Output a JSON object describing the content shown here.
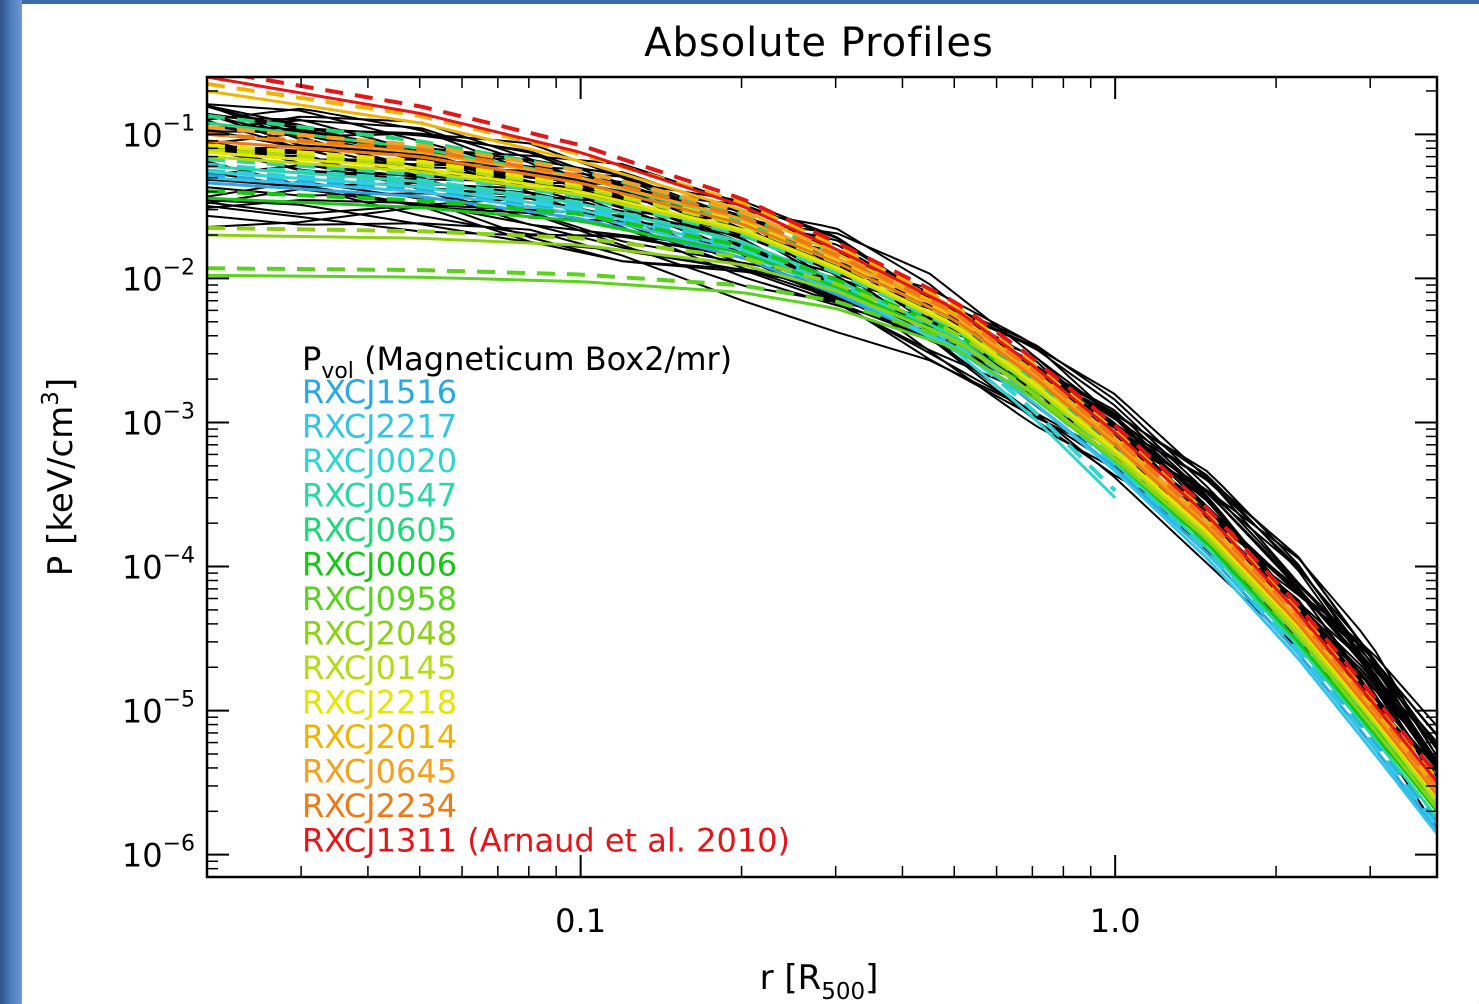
{
  "chart_data": {
    "type": "line",
    "title": "Absolute Profiles",
    "xlabel": "r [R",
    "xlabel_sub": "500",
    "xlabel_end": "]",
    "ylabel": "P [keV/cm",
    "ylabel_sup": "3",
    "ylabel_end": "]",
    "x_scale": "log",
    "y_scale": "log",
    "xlim": [
      0.02,
      4.0
    ],
    "ylim": [
      7e-07,
      0.25
    ],
    "x_ticks": [
      {
        "value": 0.1,
        "label": "0.1"
      },
      {
        "value": 1.0,
        "label": "1.0"
      }
    ],
    "y_ticks": [
      {
        "value": 0.1,
        "base": "10",
        "exp": "−1"
      },
      {
        "value": 0.01,
        "base": "10",
        "exp": "−2"
      },
      {
        "value": 0.001,
        "base": "10",
        "exp": "−3"
      },
      {
        "value": 0.0001,
        "base": "10",
        "exp": "−4"
      },
      {
        "value": 1e-05,
        "base": "10",
        "exp": "−5"
      },
      {
        "value": 1e-06,
        "base": "10",
        "exp": "−6"
      }
    ],
    "grid": false,
    "legend_placement": "left-center",
    "simulation": {
      "label": "P",
      "label_sub": "vol",
      "label_rest": " (Magneticum Box2/mr)",
      "color": "#000000",
      "n_profiles": 46,
      "x": [
        0.02,
        0.03,
        0.05,
        0.08,
        0.12,
        0.2,
        0.3,
        0.45,
        0.7,
        1.0,
        1.5,
        2.2,
        3.0,
        4.0
      ],
      "median": [
        0.065,
        0.058,
        0.048,
        0.037,
        0.027,
        0.016,
        0.0095,
        0.0048,
        0.0019,
        0.00075,
        0.00022,
        5.5e-05,
        1.5e-05,
        3.5e-06
      ]
    },
    "series": [
      {
        "name": "RXCJ1516",
        "color": "#29a7e6",
        "x": [
          0.02,
          0.05,
          0.1,
          0.2,
          0.3,
          0.5,
          0.7,
          1.0,
          1.5,
          2.2,
          3.0,
          4.0
        ],
        "y": [
          0.046,
          0.037,
          0.026,
          0.014,
          0.0078,
          0.0033,
          0.0014,
          0.00048,
          0.00012,
          2.5e-05,
          6e-06,
          1.5e-06
        ]
      },
      {
        "name": "RXCJ2217",
        "color": "#33c4e8",
        "x": [
          0.02,
          0.05,
          0.1,
          0.2,
          0.3,
          0.5,
          0.7,
          1.0,
          1.5,
          2.2,
          3.0,
          4.0
        ],
        "y": [
          0.05,
          0.04,
          0.028,
          0.015,
          0.0082,
          0.0034,
          0.0014,
          0.00046,
          0.00011,
          2.3e-05,
          5.5e-06,
          1.4e-06
        ]
      },
      {
        "name": "RXCJ0020",
        "color": "#2fd4d4",
        "x": [
          0.02,
          0.05,
          0.1,
          0.2,
          0.3,
          0.5,
          0.7,
          1.0
        ],
        "y": [
          0.055,
          0.043,
          0.03,
          0.016,
          0.0086,
          0.0032,
          0.0011,
          0.0003
        ]
      },
      {
        "name": "RXCJ0547",
        "color": "#29d6a8",
        "x": [
          0.02,
          0.05,
          0.1,
          0.2,
          0.3,
          0.5,
          0.7,
          1.0,
          1.5,
          2.2,
          3.0,
          4.0
        ],
        "y": [
          0.06,
          0.047,
          0.033,
          0.018,
          0.0098,
          0.004,
          0.0016,
          0.00052,
          0.00013,
          2.8e-05,
          7e-06,
          1.8e-06
        ]
      },
      {
        "name": "RXCJ0605",
        "color": "#22d67a",
        "x": [
          0.02,
          0.05,
          0.1,
          0.2,
          0.3,
          0.5,
          0.7,
          1.0,
          1.5,
          2.2,
          3.0,
          4.0
        ],
        "y": [
          0.12,
          0.08,
          0.05,
          0.025,
          0.013,
          0.0052,
          0.002,
          0.00065,
          0.00016,
          3.4e-05,
          8.5e-06,
          2.2e-06
        ]
      },
      {
        "name": "RXCJ0006",
        "color": "#14c814",
        "x": [
          0.02,
          0.05,
          0.1,
          0.2,
          0.3,
          0.5,
          0.7,
          1.0,
          1.5,
          2.2,
          3.0,
          4.0
        ],
        "y": [
          0.036,
          0.031,
          0.025,
          0.015,
          0.0088,
          0.0038,
          0.0016,
          0.00055,
          0.00014,
          3e-05,
          7.5e-06,
          2e-06
        ]
      },
      {
        "name": "RXCJ0958",
        "color": "#5ad21e",
        "x": [
          0.02,
          0.05,
          0.1,
          0.2,
          0.3,
          0.5,
          0.7,
          1.0,
          1.5,
          2.2,
          3.0,
          4.0
        ],
        "y": [
          0.0105,
          0.0102,
          0.0095,
          0.008,
          0.0062,
          0.0033,
          0.0015,
          0.00055,
          0.00015,
          3.3e-05,
          8e-06,
          2.1e-06
        ]
      },
      {
        "name": "RXCJ2048",
        "color": "#8cd214",
        "x": [
          0.02,
          0.05,
          0.1,
          0.2,
          0.3,
          0.5,
          0.7,
          1.0,
          1.5,
          2.2,
          3.0,
          4.0
        ],
        "y": [
          0.02,
          0.019,
          0.017,
          0.0125,
          0.0082,
          0.0038,
          0.0016,
          0.00056,
          0.00015,
          3.3e-05,
          8e-06,
          2.1e-06
        ]
      },
      {
        "name": "RXCJ0145",
        "color": "#b4dc14",
        "x": [
          0.02,
          0.05,
          0.1,
          0.2,
          0.3,
          0.5,
          0.7,
          1.0,
          1.5,
          2.2,
          3.0,
          4.0
        ],
        "y": [
          0.07,
          0.055,
          0.038,
          0.021,
          0.0115,
          0.0046,
          0.0018,
          0.0006,
          0.00016,
          3.5e-05,
          9e-06,
          2.3e-06
        ]
      },
      {
        "name": "RXCJ2218",
        "color": "#e6e600",
        "x": [
          0.02,
          0.05,
          0.1,
          0.2,
          0.3,
          0.5,
          0.7,
          1.0,
          1.5,
          2.2,
          3.0,
          4.0
        ],
        "y": [
          0.075,
          0.058,
          0.04,
          0.022,
          0.012,
          0.0048,
          0.0019,
          0.00064,
          0.00017,
          3.8e-05,
          9.5e-06,
          2.5e-06
        ]
      },
      {
        "name": "RXCJ2014",
        "color": "#f0b400",
        "x": [
          0.02,
          0.05,
          0.1,
          0.2,
          0.3,
          0.5,
          0.7,
          1.0,
          1.5,
          2.2,
          3.0,
          4.0
        ],
        "y": [
          0.2,
          0.12,
          0.065,
          0.03,
          0.015,
          0.0058,
          0.0023,
          0.00078,
          0.0002,
          4.4e-05,
          1.1e-05,
          3e-06
        ]
      },
      {
        "name": "RXCJ0645",
        "color": "#f5a01e",
        "x": [
          0.02,
          0.05,
          0.1,
          0.2,
          0.3,
          0.5,
          0.7,
          1.0,
          1.5,
          2.2,
          3.0,
          4.0
        ],
        "y": [
          0.1,
          0.075,
          0.05,
          0.026,
          0.014,
          0.0056,
          0.0022,
          0.00075,
          0.00019,
          4.2e-05,
          1.05e-05,
          2.8e-06
        ]
      },
      {
        "name": "RXCJ2234",
        "color": "#ee7a14",
        "x": [
          0.02,
          0.05,
          0.1,
          0.2,
          0.3,
          0.5,
          0.7,
          1.0,
          1.5,
          2.2,
          3.0,
          4.0
        ],
        "y": [
          0.09,
          0.07,
          0.046,
          0.024,
          0.013,
          0.0052,
          0.0021,
          0.0007,
          0.00018,
          4e-05,
          1e-05,
          2.6e-06
        ]
      },
      {
        "name": "RXCJ1311",
        "name_suffix": " (Arnaud et al. 2010)",
        "color": "#e61414",
        "x": [
          0.02,
          0.05,
          0.1,
          0.2,
          0.3,
          0.5,
          0.7,
          1.0,
          1.5,
          2.2,
          3.0,
          4.0
        ],
        "y": [
          0.25,
          0.14,
          0.075,
          0.032,
          0.016,
          0.0062,
          0.0025,
          0.00085,
          0.00022,
          4.8e-05,
          1.2e-05,
          3.2e-06
        ]
      }
    ]
  }
}
